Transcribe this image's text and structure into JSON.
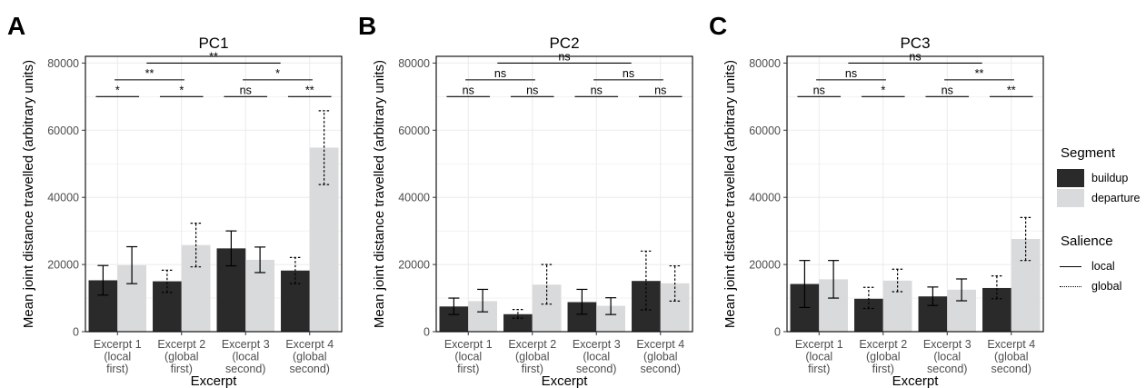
{
  "figure": {
    "x_title": "Excerpt",
    "y_title": "Mean joint distance travelled (arbitrary units)",
    "y_ticks": [
      "0",
      "20000",
      "40000",
      "60000",
      "80000"
    ],
    "x_tick_lines": [
      [
        "Excerpt 1",
        "(local",
        "first)"
      ],
      [
        "Excerpt 2",
        "(global",
        "first)"
      ],
      [
        "Excerpt 3",
        "(local",
        "second)"
      ],
      [
        "Excerpt 4",
        "(global",
        "second)"
      ]
    ]
  },
  "colors": {
    "buildup": "#2a2a2a",
    "departure": "#d9dadb",
    "grid": "#ebebeb"
  },
  "legend": {
    "segment_title": "Segment",
    "segment_items": [
      {
        "label": "buildup",
        "color": "#2a2a2a"
      },
      {
        "label": "departure",
        "color": "#d9dadb"
      }
    ],
    "salience_title": "Salience",
    "salience_items": [
      {
        "label": "local",
        "style": "solid"
      },
      {
        "label": "global",
        "style": "dotted"
      }
    ]
  },
  "chart_data": [
    {
      "type": "bar",
      "panel_label": "A",
      "title": "PC1",
      "xlabel": "Excerpt",
      "ylabel": "Mean joint distance travelled (arbitrary units)",
      "ylim": [
        0,
        82000
      ],
      "categories": [
        "Excerpt 1 (local first)",
        "Excerpt 2 (global first)",
        "Excerpt 3 (local second)",
        "Excerpt 4 (global second)"
      ],
      "salience": [
        "local",
        "global",
        "local",
        "global"
      ],
      "series": [
        {
          "name": "buildup",
          "values": [
            15300,
            15000,
            24800,
            18200
          ],
          "error_low": [
            10900,
            11700,
            19600,
            14300
          ],
          "error_high": [
            19700,
            18300,
            30000,
            22100
          ]
        },
        {
          "name": "departure",
          "values": [
            19800,
            25800,
            21400,
            54800
          ],
          "error_low": [
            14300,
            19300,
            17600,
            43800
          ],
          "error_high": [
            25300,
            32300,
            25200,
            65800
          ]
        }
      ],
      "comparisons": [
        {
          "groups": [
            0,
            0
          ],
          "level": 0,
          "label": "*"
        },
        {
          "groups": [
            1,
            1
          ],
          "level": 0,
          "label": "*"
        },
        {
          "groups": [
            2,
            2
          ],
          "level": 0,
          "label": "ns"
        },
        {
          "groups": [
            3,
            3
          ],
          "level": 0,
          "label": "**"
        },
        {
          "groups": [
            0,
            1
          ],
          "level": 1,
          "label": "**"
        },
        {
          "groups": [
            2,
            3
          ],
          "level": 1,
          "label": "*"
        },
        {
          "groups": [
            0.5,
            2.5
          ],
          "level": 2,
          "label": "**"
        }
      ]
    },
    {
      "type": "bar",
      "panel_label": "B",
      "title": "PC2",
      "xlabel": "Excerpt",
      "ylabel": "Mean joint distance travelled (arbitrary units)",
      "ylim": [
        0,
        82000
      ],
      "categories": [
        "Excerpt 1 (local first)",
        "Excerpt 2 (global first)",
        "Excerpt 3 (local second)",
        "Excerpt 4 (global second)"
      ],
      "salience": [
        "local",
        "global",
        "local",
        "global"
      ],
      "series": [
        {
          "name": "buildup",
          "values": [
            7500,
            5200,
            8800,
            15100
          ],
          "error_low": [
            5100,
            4000,
            5200,
            6500
          ],
          "error_high": [
            10000,
            6600,
            12600,
            24000
          ]
        },
        {
          "name": "departure",
          "values": [
            9100,
            14000,
            7700,
            14400
          ],
          "error_low": [
            5900,
            8200,
            5100,
            9100
          ],
          "error_high": [
            12600,
            20000,
            10100,
            19600
          ]
        }
      ],
      "comparisons": [
        {
          "groups": [
            0,
            0
          ],
          "level": 0,
          "label": "ns"
        },
        {
          "groups": [
            1,
            1
          ],
          "level": 0,
          "label": "ns"
        },
        {
          "groups": [
            2,
            2
          ],
          "level": 0,
          "label": "ns"
        },
        {
          "groups": [
            3,
            3
          ],
          "level": 0,
          "label": "ns"
        },
        {
          "groups": [
            0,
            1
          ],
          "level": 1,
          "label": "ns"
        },
        {
          "groups": [
            2,
            3
          ],
          "level": 1,
          "label": "ns"
        },
        {
          "groups": [
            0.5,
            2.5
          ],
          "level": 2,
          "label": "ns"
        }
      ]
    },
    {
      "type": "bar",
      "panel_label": "C",
      "title": "PC3",
      "xlabel": "Excerpt",
      "ylabel": "Mean joint distance travelled (arbitrary units)",
      "ylim": [
        0,
        82000
      ],
      "categories": [
        "Excerpt 1 (local first)",
        "Excerpt 2 (global first)",
        "Excerpt 3 (local second)",
        "Excerpt 4 (global second)"
      ],
      "salience": [
        "local",
        "global",
        "local",
        "global"
      ],
      "series": [
        {
          "name": "buildup",
          "values": [
            14200,
            9800,
            10500,
            13000
          ],
          "error_low": [
            7200,
            6900,
            7800,
            9800
          ],
          "error_high": [
            21200,
            13200,
            13300,
            16600
          ]
        },
        {
          "name": "departure",
          "values": [
            15600,
            15200,
            12500,
            27600
          ],
          "error_low": [
            10000,
            11900,
            9200,
            21200
          ],
          "error_high": [
            21200,
            18600,
            15700,
            34000
          ]
        }
      ],
      "comparisons": [
        {
          "groups": [
            0,
            0
          ],
          "level": 0,
          "label": "ns"
        },
        {
          "groups": [
            1,
            1
          ],
          "level": 0,
          "label": "*"
        },
        {
          "groups": [
            2,
            2
          ],
          "level": 0,
          "label": "ns"
        },
        {
          "groups": [
            3,
            3
          ],
          "level": 0,
          "label": "**"
        },
        {
          "groups": [
            0,
            1
          ],
          "level": 1,
          "label": "ns"
        },
        {
          "groups": [
            2,
            3
          ],
          "level": 1,
          "label": "**"
        },
        {
          "groups": [
            0.5,
            2.5
          ],
          "level": 2,
          "label": "ns"
        }
      ]
    }
  ]
}
